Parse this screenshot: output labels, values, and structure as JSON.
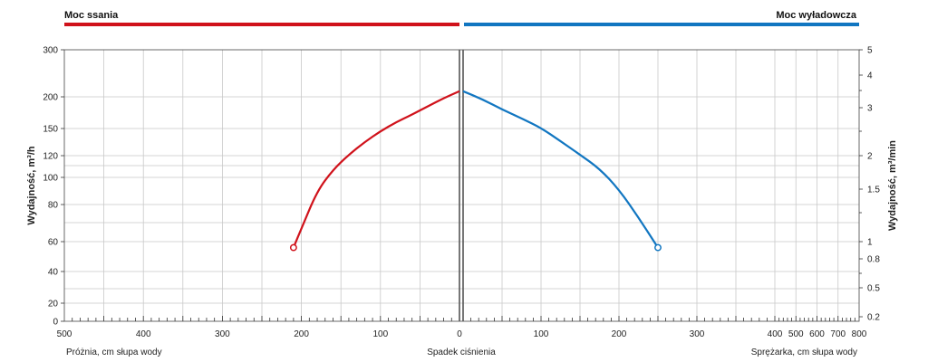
{
  "colors": {
    "suction": "#d0121b",
    "discharge": "#1176c1"
  },
  "headers": {
    "left": "Moc ssania",
    "right": "Moc wyładowcza"
  },
  "footer": {
    "left": "Próżnia, cm słupa wody",
    "center": "Spadek ciśnienia",
    "right": "Sprężarka, cm słupa wody"
  },
  "axes": {
    "y_left_label": "Wydajność, m³/h",
    "y_right_label": "Wydajność, m³/min",
    "y_left_ticks": [
      "0",
      "20",
      "40",
      "60",
      "80",
      "100",
      "120",
      "150",
      "200",
      "300"
    ],
    "y_right_ticks": [
      "0.2",
      "0.5",
      "0.8",
      "1",
      "1.5",
      "2",
      "3",
      "4",
      "5"
    ],
    "x_left_ticks": [
      "500",
      "400",
      "300",
      "200",
      "100",
      "0"
    ],
    "x_right_ticks": [
      "0",
      "100",
      "200",
      "300",
      "400",
      "500",
      "600",
      "700",
      "800"
    ]
  },
  "chart_data": {
    "type": "line",
    "series": [
      {
        "name": "Moc ssania",
        "unit_x": "cm słupa wody (próżnia)",
        "x": [
          210,
          200,
          180,
          160,
          140,
          120,
          100,
          80,
          60,
          40,
          20,
          0
        ],
        "y": [
          56,
          67,
          90,
          107,
          121,
          135,
          147,
          160,
          172,
          185,
          198,
          212
        ]
      },
      {
        "name": "Moc wyładowcza",
        "unit_x": "cm słupa wody (sprężarka)",
        "x": [
          0,
          25,
          50,
          75,
          100,
          125,
          150,
          175,
          200,
          225,
          250
        ],
        "y": [
          212,
          196,
          180,
          166,
          151,
          136,
          121,
          108,
          91,
          73,
          56
        ]
      }
    ],
    "ylim": [
      0,
      300
    ]
  }
}
